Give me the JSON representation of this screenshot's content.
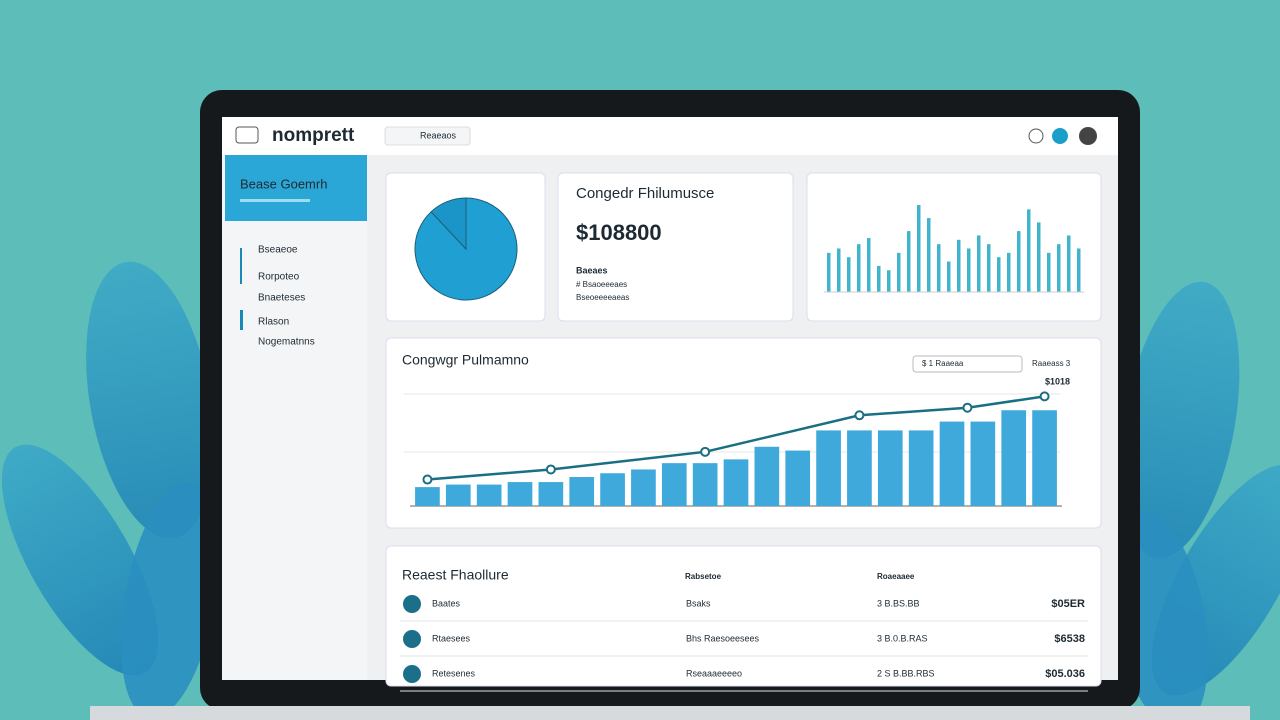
{
  "header": {
    "brand": "nomprett",
    "search": "Reaeaos"
  },
  "sidebar": {
    "active": "Bease Goemrh",
    "items": [
      "Bseaeoe",
      "Rorpoteo",
      "Bnaeteses",
      "Rlason",
      "Nogematnns"
    ]
  },
  "pie": {
    "type": "pie",
    "values": [
      88,
      12
    ],
    "colors": [
      "#1f9fd2",
      "#1b95c8"
    ]
  },
  "kpi": {
    "title": "Congedr Fhilumusce",
    "value": "$108800",
    "label": "Baeaes",
    "lines": [
      "# Bsaoeeeaes",
      "Bseoeeeeaeas"
    ]
  },
  "mini_chart": {
    "type": "bar",
    "color": "#3fb4cc",
    "ylim": [
      0,
      100
    ],
    "values": [
      45,
      50,
      40,
      55,
      62,
      30,
      25,
      45,
      70,
      100,
      85,
      55,
      35,
      60,
      50,
      65,
      55,
      40,
      45,
      70,
      95,
      80,
      45,
      55,
      65,
      50
    ]
  },
  "main_chart": {
    "type": "bar",
    "title": "Congwgr Pulmamno",
    "filter": "$ 1 Raaeaa",
    "filter_right": "Raaeass 3",
    "annotation": "$1018",
    "ylim": [
      0,
      100
    ],
    "xlim": [
      -0.5,
      20.5
    ],
    "bars": {
      "color": "#3fa9dc",
      "values": [
        15,
        17,
        17,
        19,
        19,
        23,
        26,
        29,
        34,
        34,
        37,
        47,
        44,
        60,
        60,
        60,
        60,
        67,
        67,
        76,
        76
      ]
    },
    "line": {
      "color": "#1a6f82",
      "x": [
        0,
        4,
        9,
        14,
        17.5,
        20
      ],
      "values": [
        21,
        29,
        43,
        72,
        78,
        87
      ]
    }
  },
  "table": {
    "title": "Reaest Fhaollure",
    "headers": [
      "Rabsetoe",
      "Roaeaaee"
    ],
    "rows": [
      [
        "Baates",
        "Bsaks",
        "3 B.BS.BB",
        "$05ER"
      ],
      [
        "Rtaesees",
        "Bhs Raesoeesees",
        "3 B.0.B.RAS",
        "$6538"
      ],
      [
        "Retesenes",
        "Rseaaaeeeeo",
        "2 S B.BB.RBS",
        "$05.036"
      ]
    ]
  }
}
